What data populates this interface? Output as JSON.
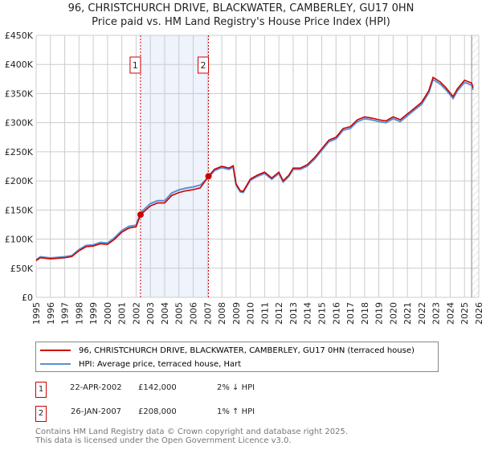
{
  "title_line1": "96, CHRISTCHURCH DRIVE, BLACKWATER, CAMBERLEY, GU17 0HN",
  "title_line2": "Price paid vs. HM Land Registry's House Price Index (HPI)",
  "colors": {
    "property": "#cc0000",
    "hpi": "#5b8fd4",
    "shade": "#eef3fc",
    "grid": "#cccccc"
  },
  "chart_data": {
    "type": "line",
    "title": "96, CHRISTCHURCH DRIVE, BLACKWATER, CAMBERLEY, GU17 0HN — Price paid vs. HM Land Registry's House Price Index (HPI)",
    "xlim": [
      1995,
      2026
    ],
    "ylim": [
      0,
      450000
    ],
    "y_ticks": [
      0,
      50000,
      100000,
      150000,
      200000,
      250000,
      300000,
      350000,
      400000,
      450000
    ],
    "y_tick_labels": [
      "£0",
      "£50K",
      "£100K",
      "£150K",
      "£200K",
      "£250K",
      "£300K",
      "£350K",
      "£400K",
      "£450K"
    ],
    "x_ticks": [
      "1995",
      "1996",
      "1997",
      "1998",
      "1999",
      "2000",
      "2001",
      "2002",
      "2003",
      "2004",
      "2005",
      "2006",
      "2007",
      "2008",
      "2009",
      "2010",
      "2011",
      "2012",
      "2013",
      "2014",
      "2015",
      "2016",
      "2017",
      "2018",
      "2019",
      "2020",
      "2021",
      "2022",
      "2023",
      "2024",
      "2025",
      "2026"
    ],
    "grid": true,
    "shaded_range": [
      2002.31,
      2007.07
    ],
    "forecast_hatch_from": 2025.5,
    "series": [
      {
        "name": "96, CHRISTCHURCH DRIVE, BLACKWATER, CAMBERLEY, GU17 0HN (terraced house)",
        "x": [
          1995,
          1995.3,
          1996,
          1997,
          1997.5,
          1998,
          1998.5,
          1999,
          1999.5,
          2000,
          2000.5,
          2001,
          2001.5,
          2002,
          2002.31,
          2003,
          2003.5,
          2004,
          2004.5,
          2005,
          2005.5,
          2006,
          2006.5,
          2007.07,
          2007.5,
          2008,
          2008.5,
          2008.8,
          2009,
          2009.3,
          2009.5,
          2010,
          2010.5,
          2011,
          2011.5,
          2012,
          2012.3,
          2012.7,
          2013,
          2013.5,
          2014,
          2014.5,
          2015,
          2015.5,
          2016,
          2016.5,
          2017,
          2017.5,
          2018,
          2018.5,
          2019,
          2019.5,
          2020,
          2020.5,
          2021,
          2021.5,
          2022,
          2022.5,
          2022.8,
          2023.3,
          2023.7,
          2024.2,
          2024.5,
          2025,
          2025.5,
          2025.6
        ],
        "y": [
          63000,
          68000,
          66000,
          68000,
          70000,
          80000,
          87000,
          88000,
          92000,
          91000,
          100000,
          112000,
          119000,
          121000,
          142000,
          157000,
          162000,
          162000,
          175000,
          180000,
          183000,
          185000,
          188000,
          208000,
          220000,
          225000,
          222000,
          226000,
          195000,
          183000,
          182000,
          203000,
          210000,
          215000,
          205000,
          215000,
          200000,
          210000,
          222000,
          222000,
          228000,
          240000,
          255000,
          270000,
          275000,
          290000,
          293000,
          305000,
          310000,
          308000,
          305000,
          303000,
          310000,
          305000,
          315000,
          325000,
          335000,
          355000,
          378000,
          370000,
          360000,
          345000,
          358000,
          373000,
          368000,
          360000
        ]
      },
      {
        "name": "HPI: Average price, terraced house, Hart"
      }
    ],
    "legend_position": "below"
  },
  "legend": {
    "property_label": "96, CHRISTCHURCH DRIVE, BLACKWATER, CAMBERLEY, GU17 0HN (terraced house)",
    "hpi_label": "HPI: Average price, terraced house, Hart"
  },
  "transactions": [
    {
      "num": "1",
      "date": "22-APR-2002",
      "price": "£142,000",
      "hpi": "2% ↓ HPI"
    },
    {
      "num": "2",
      "date": "26-JAN-2007",
      "price": "£208,000",
      "hpi": "1% ↑ HPI"
    }
  ],
  "footer_line1": "Contains HM Land Registry data © Crown copyright and database right 2025.",
  "footer_line2": "This data is licensed under the Open Government Licence v3.0."
}
